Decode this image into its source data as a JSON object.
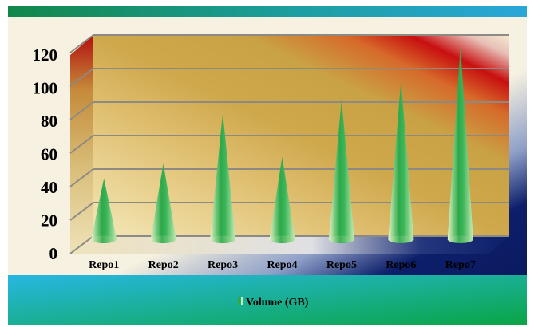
{
  "chart_data": {
    "type": "bar",
    "shape": "cone",
    "categories": [
      "Repo1",
      "Repo2",
      "Repo3",
      "Repo4",
      "Repo5",
      "Repo6",
      "Repo7"
    ],
    "series": [
      {
        "name": "Volume (GB)",
        "values": [
          41,
          50,
          80,
          54,
          88,
          100,
          120
        ]
      }
    ],
    "ylim": [
      0,
      120
    ],
    "yticks": [
      "0",
      "20",
      "40",
      "60",
      "80",
      "100",
      "120"
    ],
    "grid": true,
    "legend": "bottom",
    "colors": {
      "cone_dark": "#1f9a3a",
      "cone_light": "#c8f0c0",
      "cone_mid": "#4fc46a",
      "wall_gold": "#c9a347",
      "wall_light": "#efe2b0",
      "wall_red": "#c81010",
      "navy": "#0c1f6a",
      "header_green": "#13864a",
      "header_cyan": "#26a9d4",
      "footer_cyan": "#26b8e0",
      "footer_green": "#0fa84a"
    }
  }
}
